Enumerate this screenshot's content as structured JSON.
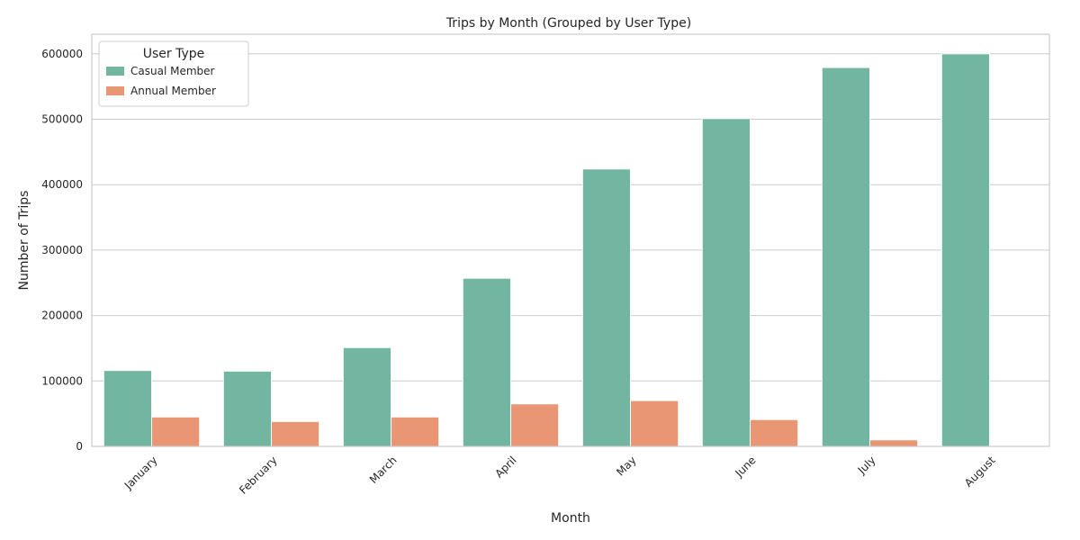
{
  "chart_data": {
    "type": "bar",
    "title": "Trips by Month (Grouped by User Type)",
    "xlabel": "Month",
    "ylabel": "Number of Trips",
    "categories": [
      "January",
      "February",
      "March",
      "April",
      "May",
      "June",
      "July",
      "August"
    ],
    "series": [
      {
        "name": "Casual Member",
        "color": "#72b6a1",
        "values": [
          116000,
          115000,
          151000,
          257000,
          424000,
          501000,
          579000,
          600000
        ]
      },
      {
        "name": "Annual Member",
        "color": "#e99675",
        "values": [
          45000,
          38000,
          45000,
          65000,
          70000,
          41000,
          10000,
          0
        ]
      }
    ],
    "ylim": [
      0,
      630000
    ],
    "yticks": [
      0,
      100000,
      200000,
      300000,
      400000,
      500000,
      600000
    ],
    "ytick_labels": [
      "0",
      "100000",
      "200000",
      "300000",
      "400000",
      "500000",
      "600000"
    ],
    "grid": "horizontal",
    "legend": {
      "title": "User Type",
      "position": "top-left"
    }
  }
}
